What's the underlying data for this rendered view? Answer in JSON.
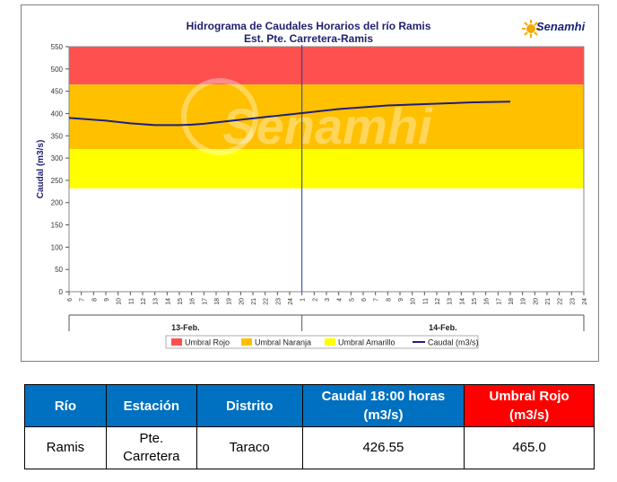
{
  "chart_data": {
    "type": "line",
    "title": "Hidrograma de Caudales Horarios del río Ramis",
    "subtitle": "Est. Pte. Carretera-Ramis",
    "ylabel": "Caudal  (m3/s)",
    "ylim": [
      0,
      550
    ],
    "yticks": [
      0,
      50,
      100,
      150,
      200,
      250,
      300,
      350,
      400,
      450,
      500,
      550
    ],
    "xticks": [
      "6",
      "7",
      "8",
      "9",
      "10",
      "11",
      "12",
      "13",
      "14",
      "15",
      "16",
      "17",
      "18",
      "19",
      "20",
      "21",
      "22",
      "23",
      "24",
      "1",
      "2",
      "3",
      "4",
      "5",
      "6",
      "7",
      "8",
      "9",
      "10",
      "11",
      "12",
      "13",
      "14",
      "15",
      "16",
      "17",
      "18",
      "19",
      "20",
      "21",
      "22",
      "23",
      "24"
    ],
    "day_groups": [
      {
        "label": "13-Feb.",
        "from_tick": 0,
        "to_tick": 19
      },
      {
        "label": "14-Feb.",
        "from_tick": 19,
        "to_tick": 42
      }
    ],
    "bands": [
      {
        "name": "Umbral Rojo",
        "from": 465,
        "to": 550,
        "color": "#ff5050"
      },
      {
        "name": "Umbral Naranja",
        "from": 320,
        "to": 465,
        "color": "#ffc000"
      },
      {
        "name": "Umbral Amarillo",
        "from": 232,
        "to": 320,
        "color": "#ffff00"
      }
    ],
    "series": [
      {
        "name": "Caudal (m3/s)",
        "color": "#1f1f7a",
        "x_index": [
          0,
          1,
          2,
          3,
          4,
          5,
          6,
          7,
          8,
          9,
          10,
          11,
          12,
          13,
          14,
          15,
          16,
          17,
          18,
          19,
          20,
          21,
          22,
          23,
          24,
          25,
          26,
          27,
          28,
          29,
          30,
          31,
          32,
          33,
          34,
          35,
          36
        ],
        "values": [
          390,
          388,
          386,
          384,
          381,
          378,
          376,
          374,
          374,
          374,
          375,
          377,
          380,
          383,
          386,
          389,
          392,
          395,
          398,
          401,
          404,
          407,
          410,
          412,
          414,
          416,
          418,
          419,
          420,
          421,
          422,
          423,
          424,
          425,
          425.5,
          426,
          426.55
        ]
      }
    ],
    "vline_tick": 19,
    "legend_position": "bottom",
    "watermark": "Senamhi"
  },
  "logo": {
    "text": "Senamhi"
  },
  "table": {
    "headers": [
      "Río",
      "Estación",
      "Distrito",
      "Caudal  18:00 horas (m3/s)",
      "Umbral Rojo (m3/s)"
    ],
    "row": [
      "Ramis",
      "Pte. Carretera",
      "Taraco",
      "426.55",
      "465.0"
    ]
  }
}
